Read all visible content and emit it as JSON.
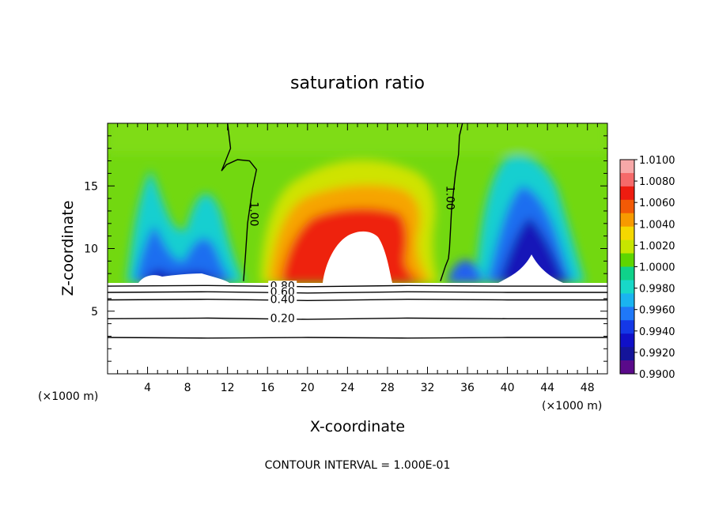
{
  "chart_data": {
    "type": "heatmap",
    "title": "saturation ratio",
    "xlabel": "X-coordinate",
    "ylabel": "Z-coordinate",
    "x_unit_label_left": "(×1000 m)",
    "x_unit_label_right": "(×1000 m)",
    "xlim": [
      0,
      50
    ],
    "ylim": [
      0,
      20
    ],
    "x_ticks": [
      4,
      8,
      12,
      16,
      20,
      24,
      28,
      32,
      36,
      40,
      44,
      48
    ],
    "y_ticks": [
      5,
      10,
      15
    ],
    "colorbar": {
      "levels": [
        "1.0100",
        "1.0080",
        "1.0060",
        "1.0040",
        "1.0020",
        "1.0000",
        "0.9980",
        "0.9960",
        "0.9940",
        "0.9920",
        "0.9900"
      ],
      "colors": [
        "#f7a8a8",
        "#f56a6a",
        "#ee1c10",
        "#f25a06",
        "#f79a00",
        "#f5d800",
        "#c7e600",
        "#5ed600",
        "#0fd28a",
        "#18d8c8",
        "#1ab4f0",
        "#1f78f8",
        "#1438e6",
        "#1010c8",
        "#14149a",
        "#5a0a8a"
      ]
    },
    "contour_lines": [
      {
        "label": "1.00",
        "x": [
          12.0,
          12.3,
          11.4,
          11.9,
          13.0,
          14.2,
          14.9,
          14.5,
          14.0,
          13.8,
          13.6
        ],
        "y": [
          20.0,
          18.0,
          16.2,
          16.7,
          17.1,
          17.0,
          16.3,
          14.8,
          12.0,
          9.5,
          7.4
        ]
      },
      {
        "label": "1.00",
        "x": [
          35.5,
          35.2,
          35.1,
          34.8,
          34.6,
          34.4,
          34.3,
          34.2,
          34.1,
          33.8,
          33.3
        ],
        "y": [
          20.0,
          19.0,
          17.5,
          16.0,
          14.5,
          13.0,
          11.5,
          10.0,
          9.2,
          8.6,
          7.4
        ]
      },
      {
        "label": "0.80",
        "x": [
          0,
          10,
          20,
          30,
          40,
          50
        ],
        "y": [
          7.0,
          7.05,
          6.95,
          7.05,
          7.0,
          7.0
        ]
      },
      {
        "label": "0.60",
        "x": [
          0,
          10,
          20,
          30,
          40,
          50
        ],
        "y": [
          6.5,
          6.55,
          6.45,
          6.55,
          6.5,
          6.5
        ]
      },
      {
        "label": "0.40",
        "x": [
          0,
          10,
          20,
          30,
          40,
          50
        ],
        "y": [
          5.9,
          5.95,
          5.85,
          5.95,
          5.9,
          5.9
        ]
      },
      {
        "label": "0.20",
        "x": [
          0,
          10,
          20,
          30,
          40,
          50
        ],
        "y": [
          4.4,
          4.45,
          4.35,
          4.45,
          4.4,
          4.4
        ]
      },
      {
        "label": "",
        "x": [
          0,
          10,
          20,
          30,
          40,
          50
        ],
        "y": [
          2.9,
          2.85,
          2.9,
          2.85,
          2.9,
          2.9
        ]
      }
    ],
    "footer": "CONTOUR INTERVAL = 1.000E-01"
  }
}
